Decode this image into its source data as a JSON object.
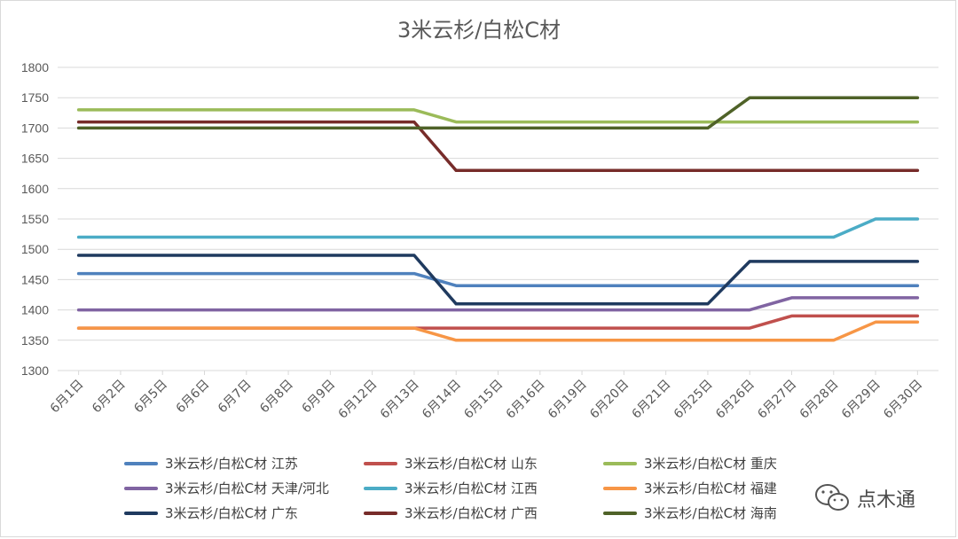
{
  "chart_data": {
    "type": "line",
    "title": "3米云杉/白松C材",
    "categories": [
      "6月1日",
      "6月2日",
      "6月5日",
      "6月6日",
      "6月7日",
      "6月8日",
      "6月9日",
      "6月12日",
      "6月13日",
      "6月14日",
      "6月15日",
      "6月16日",
      "6月19日",
      "6月20日",
      "6月21日",
      "6月25日",
      "6月26日",
      "6月27日",
      "6月28日",
      "6月29日",
      "6月30日"
    ],
    "ylim": [
      1300,
      1800
    ],
    "yticks": [
      1300,
      1350,
      1400,
      1450,
      1500,
      1550,
      1600,
      1650,
      1700,
      1750,
      1800
    ],
    "grid": true,
    "legend_position": "bottom",
    "series": [
      {
        "name": "3米云杉/白松C材 江苏",
        "color": "#4f81bd",
        "values": [
          1460,
          1460,
          1460,
          1460,
          1460,
          1460,
          1460,
          1460,
          1460,
          1440,
          1440,
          1440,
          1440,
          1440,
          1440,
          1440,
          1440,
          1440,
          1440,
          1440,
          1440
        ]
      },
      {
        "name": "3米云杉/白松C材 山东",
        "color": "#c0504d",
        "values": [
          1370,
          1370,
          1370,
          1370,
          1370,
          1370,
          1370,
          1370,
          1370,
          1370,
          1370,
          1370,
          1370,
          1370,
          1370,
          1370,
          1370,
          1390,
          1390,
          1390,
          1390
        ]
      },
      {
        "name": "3米云杉/白松C材 重庆",
        "color": "#9bbb59",
        "values": [
          1730,
          1730,
          1730,
          1730,
          1730,
          1730,
          1730,
          1730,
          1730,
          1710,
          1710,
          1710,
          1710,
          1710,
          1710,
          1710,
          1710,
          1710,
          1710,
          1710,
          1710
        ]
      },
      {
        "name": "3米云杉/白松C材 天津/河北",
        "color": "#8064a2",
        "values": [
          1400,
          1400,
          1400,
          1400,
          1400,
          1400,
          1400,
          1400,
          1400,
          1400,
          1400,
          1400,
          1400,
          1400,
          1400,
          1400,
          1400,
          1420,
          1420,
          1420,
          1420
        ]
      },
      {
        "name": "3米云杉/白松C材 江西",
        "color": "#4bacc6",
        "values": [
          1520,
          1520,
          1520,
          1520,
          1520,
          1520,
          1520,
          1520,
          1520,
          1520,
          1520,
          1520,
          1520,
          1520,
          1520,
          1520,
          1520,
          1520,
          1520,
          1550,
          1550
        ]
      },
      {
        "name": "3米云杉/白松C材 福建",
        "color": "#f79646",
        "values": [
          1370,
          1370,
          1370,
          1370,
          1370,
          1370,
          1370,
          1370,
          1370,
          1350,
          1350,
          1350,
          1350,
          1350,
          1350,
          1350,
          1350,
          1350,
          1350,
          1380,
          1380
        ]
      },
      {
        "name": "3米云杉/白松C材 广东",
        "color": "#1f3a5f",
        "values": [
          1490,
          1490,
          1490,
          1490,
          1490,
          1490,
          1490,
          1490,
          1490,
          1410,
          1410,
          1410,
          1410,
          1410,
          1410,
          1410,
          1480,
          1480,
          1480,
          1480,
          1480
        ]
      },
      {
        "name": "3米云杉/白松C材 广西",
        "color": "#772c2a",
        "values": [
          1710,
          1710,
          1710,
          1710,
          1710,
          1710,
          1710,
          1710,
          1710,
          1630,
          1630,
          1630,
          1630,
          1630,
          1630,
          1630,
          1630,
          1630,
          1630,
          1630,
          1630
        ]
      },
      {
        "name": "3米云杉/白松C材 海南",
        "color": "#4f6228",
        "values": [
          1700,
          1700,
          1700,
          1700,
          1700,
          1700,
          1700,
          1700,
          1700,
          1700,
          1700,
          1700,
          1700,
          1700,
          1700,
          1700,
          1750,
          1750,
          1750,
          1750,
          1750
        ]
      }
    ]
  },
  "watermark": {
    "text": "点木通",
    "icon": "wechat-icon"
  }
}
